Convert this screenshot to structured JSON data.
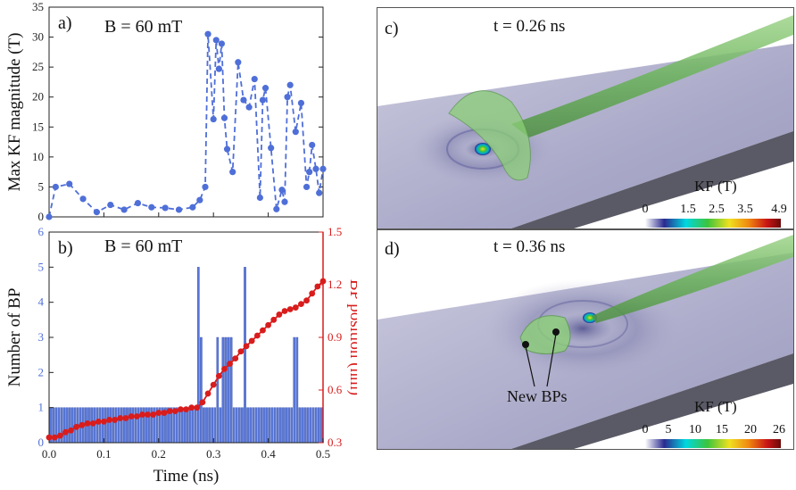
{
  "chart_data": [
    {
      "type": "line",
      "panel": "a)",
      "annotation": "B = 60 mT",
      "ylabel": "Max KF magnitude (T)",
      "ylim": [
        0,
        35
      ],
      "yticks": [
        0,
        5,
        10,
        15,
        20,
        25,
        30,
        35
      ],
      "xlim": [
        0,
        0.5
      ],
      "color": "#4f6fd8",
      "series": [
        {
          "x": [
            0.0,
            0.012,
            0.037,
            0.062,
            0.087,
            0.112,
            0.137,
            0.162,
            0.187,
            0.212,
            0.237,
            0.262,
            0.275,
            0.285,
            0.29,
            0.3,
            0.305,
            0.31,
            0.315,
            0.32,
            0.325,
            0.335,
            0.345,
            0.355,
            0.365,
            0.375,
            0.385,
            0.39,
            0.395,
            0.405,
            0.415,
            0.425,
            0.43,
            0.435,
            0.44,
            0.45,
            0.46,
            0.47,
            0.475,
            0.48,
            0.487,
            0.493,
            0.5
          ],
          "y": [
            0.0,
            5.0,
            5.5,
            3.0,
            0.8,
            2.0,
            1.2,
            2.3,
            1.6,
            1.5,
            1.2,
            1.6,
            2.8,
            5.0,
            30.5,
            16.3,
            29.5,
            24.7,
            28.9,
            16.5,
            11.3,
            7.5,
            25.8,
            19.5,
            18.3,
            23.0,
            3.2,
            19.5,
            21.5,
            11.5,
            1.3,
            4.5,
            2.5,
            20.0,
            22.0,
            14.2,
            19.0,
            5.0,
            7.5,
            12.0,
            8.0,
            4.0,
            8.0
          ]
        }
      ]
    },
    {
      "type": "bar",
      "panel": "b)",
      "annotation": "B = 60 mT",
      "xlabel": "Time (ns)",
      "ylabel": "Number of BP",
      "y2label": "BP position (nm)",
      "xlim": [
        0,
        0.5
      ],
      "ylim": [
        0,
        6
      ],
      "y2lim": [
        0.3,
        1.5
      ],
      "xticks": [
        "0.0",
        "0.1",
        "0.2",
        "0.3",
        "0.4",
        "0.5"
      ],
      "yticks": [
        "0",
        "1",
        "2",
        "3",
        "4",
        "5",
        "6"
      ],
      "y2ticks": [
        "0.3",
        "0.6",
        "0.9",
        "1.2",
        "1.5"
      ],
      "bar_color": "#5a78d8",
      "line_color": "#d91c1c",
      "bar_width": 0.005,
      "bars": {
        "x": [
          0.0025,
          0.0075,
          0.0125,
          0.0175,
          0.0225,
          0.0275,
          0.0325,
          0.0375,
          0.0425,
          0.0475,
          0.0525,
          0.0575,
          0.0625,
          0.0675,
          0.0725,
          0.0775,
          0.0825,
          0.0875,
          0.0925,
          0.0975,
          0.1025,
          0.1075,
          0.1125,
          0.1175,
          0.1225,
          0.1275,
          0.1325,
          0.1375,
          0.1425,
          0.1475,
          0.1525,
          0.1575,
          0.1625,
          0.1675,
          0.1725,
          0.1775,
          0.1825,
          0.1875,
          0.1925,
          0.1975,
          0.2025,
          0.2075,
          0.2125,
          0.2175,
          0.2225,
          0.2275,
          0.2325,
          0.2375,
          0.2425,
          0.2475,
          0.2525,
          0.2575,
          0.2625,
          0.2675,
          0.2725,
          0.2775,
          0.2825,
          0.2875,
          0.2925,
          0.2975,
          0.3025,
          0.3075,
          0.3125,
          0.3175,
          0.3225,
          0.3275,
          0.3325,
          0.3375,
          0.3425,
          0.3475,
          0.3525,
          0.3575,
          0.3625,
          0.3675,
          0.3725,
          0.3775,
          0.3825,
          0.3875,
          0.3925,
          0.3975,
          0.4025,
          0.4075,
          0.4125,
          0.4175,
          0.4225,
          0.4275,
          0.4325,
          0.4375,
          0.4425,
          0.4475,
          0.4525,
          0.4575,
          0.4625,
          0.4675,
          0.4725,
          0.4775,
          0.4825,
          0.4875,
          0.4925,
          0.4975
        ],
        "values": [
          1,
          1,
          1,
          1,
          1,
          1,
          1,
          1,
          1,
          1,
          1,
          1,
          1,
          1,
          1,
          1,
          1,
          1,
          1,
          1,
          1,
          1,
          1,
          1,
          1,
          1,
          1,
          1,
          1,
          1,
          1,
          1,
          1,
          1,
          1,
          1,
          1,
          1,
          1,
          1,
          1,
          1,
          1,
          1,
          1,
          1,
          1,
          1,
          1,
          1,
          1,
          1,
          1,
          1,
          5,
          3,
          1,
          1,
          1,
          1,
          1,
          3,
          1,
          3,
          3,
          3,
          3,
          1,
          1,
          1,
          1,
          5,
          1,
          1,
          1,
          1,
          1,
          1,
          1,
          1,
          1,
          1,
          1,
          1,
          1,
          1,
          1,
          1,
          1,
          3,
          3,
          1,
          1,
          1,
          1,
          1,
          1,
          1,
          1,
          1
        ]
      },
      "line": {
        "x": [
          0.0,
          0.01,
          0.02,
          0.03,
          0.04,
          0.05,
          0.06,
          0.07,
          0.08,
          0.09,
          0.1,
          0.11,
          0.12,
          0.13,
          0.14,
          0.15,
          0.16,
          0.17,
          0.18,
          0.19,
          0.2,
          0.21,
          0.22,
          0.23,
          0.24,
          0.25,
          0.26,
          0.27,
          0.28,
          0.29,
          0.3,
          0.31,
          0.32,
          0.33,
          0.34,
          0.35,
          0.36,
          0.37,
          0.38,
          0.39,
          0.4,
          0.41,
          0.42,
          0.43,
          0.44,
          0.45,
          0.46,
          0.47,
          0.48,
          0.49,
          0.5
        ],
        "values": [
          0.33,
          0.33,
          0.34,
          0.36,
          0.37,
          0.39,
          0.4,
          0.41,
          0.41,
          0.42,
          0.42,
          0.43,
          0.43,
          0.44,
          0.44,
          0.45,
          0.45,
          0.46,
          0.46,
          0.46,
          0.47,
          0.47,
          0.48,
          0.48,
          0.49,
          0.49,
          0.5,
          0.5,
          0.53,
          0.58,
          0.63,
          0.68,
          0.72,
          0.75,
          0.78,
          0.82,
          0.85,
          0.88,
          0.91,
          0.94,
          0.97,
          1.0,
          1.03,
          1.05,
          1.06,
          1.07,
          1.09,
          1.11,
          1.15,
          1.19,
          1.22
        ]
      }
    }
  ],
  "panels": {
    "c": {
      "label": "c)",
      "time": "t = 0.26 ns",
      "colorbar_title": "KF (T)",
      "colorbar_ticks": [
        "0",
        "1.5",
        "2.5",
        "3.5",
        "4.9"
      ]
    },
    "d": {
      "label": "d)",
      "time": "t = 0.36 ns",
      "colorbar_title": "KF (T)",
      "colorbar_ticks": [
        "0",
        "5",
        "10",
        "15",
        "20",
        "26"
      ],
      "annotation": "New BPs"
    }
  }
}
